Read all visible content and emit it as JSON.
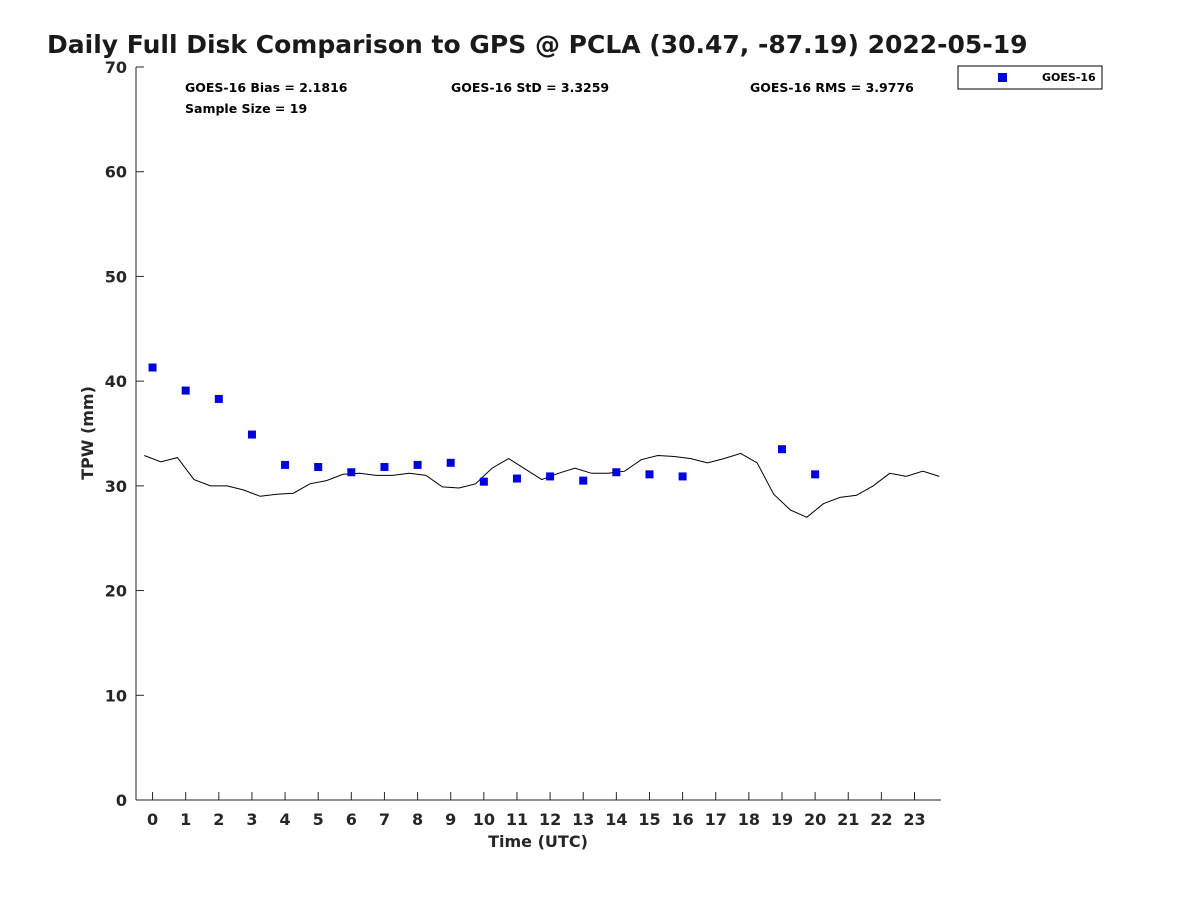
{
  "chart_data": {
    "type": "scatter",
    "title": "Daily Full Disk Comparison to GPS @ PCLA (30.47, -87.19) 2022-05-19",
    "xlabel": "Time (UTC)",
    "ylabel": "TPW (mm)",
    "xlim": [
      -0.5,
      23.8
    ],
    "ylim": [
      0,
      70
    ],
    "x_ticks": [
      0,
      1,
      2,
      3,
      4,
      5,
      6,
      7,
      8,
      9,
      10,
      11,
      12,
      13,
      14,
      15,
      16,
      17,
      18,
      19,
      20,
      21,
      22,
      23
    ],
    "y_ticks": [
      0,
      10,
      20,
      30,
      40,
      50,
      60,
      70
    ],
    "grid": false,
    "legend_position": "top-right, outside plot",
    "stats": {
      "bias": "GOES-16 Bias = 2.1816",
      "std": "GOES-16 StD = 3.3259",
      "rms": "GOES-16 RMS = 3.9776",
      "sample": "Sample Size = 19"
    },
    "series": [
      {
        "name": "GOES-16",
        "kind": "scatter",
        "marker": "square",
        "color": "#0000dd",
        "x": [
          0,
          1,
          2,
          3,
          4,
          5,
          6,
          7,
          8,
          9,
          10,
          11,
          12,
          13,
          14,
          15,
          16,
          19,
          20
        ],
        "y": [
          41.3,
          39.1,
          38.3,
          34.9,
          32.0,
          31.8,
          31.3,
          31.8,
          32.0,
          32.2,
          30.4,
          30.7,
          30.9,
          30.5,
          31.3,
          31.1,
          30.9,
          33.5,
          31.1
        ]
      },
      {
        "kind": "line",
        "color": "#000000",
        "x": [
          -0.25,
          0.25,
          0.75,
          1.25,
          1.75,
          2.25,
          2.75,
          3.25,
          3.75,
          4.25,
          4.75,
          5.25,
          5.75,
          6.25,
          6.75,
          7.25,
          7.75,
          8.25,
          8.75,
          9.25,
          9.75,
          10.25,
          10.75,
          11.25,
          11.75,
          12.25,
          12.75,
          13.25,
          13.75,
          14.25,
          14.75,
          15.25,
          15.75,
          16.25,
          16.75,
          17.25,
          17.75,
          18.25,
          18.75,
          19.25,
          19.75,
          20.25,
          20.75,
          21.25,
          21.75,
          22.25,
          22.75,
          23.25,
          23.75
        ],
        "y": [
          32.9,
          32.3,
          32.7,
          30.6,
          30.0,
          30.0,
          29.6,
          29.0,
          29.2,
          29.3,
          30.2,
          30.5,
          31.1,
          31.2,
          31.0,
          31.0,
          31.2,
          31.0,
          29.9,
          29.8,
          30.2,
          31.7,
          32.6,
          31.6,
          30.6,
          31.2,
          31.7,
          31.2,
          31.2,
          31.4,
          32.5,
          32.9,
          32.8,
          32.6,
          32.2,
          32.6,
          33.1,
          32.2,
          29.2,
          27.7,
          27.0,
          28.3,
          28.9,
          29.1,
          30.0,
          31.2,
          30.9,
          31.4,
          30.9
        ]
      }
    ]
  }
}
